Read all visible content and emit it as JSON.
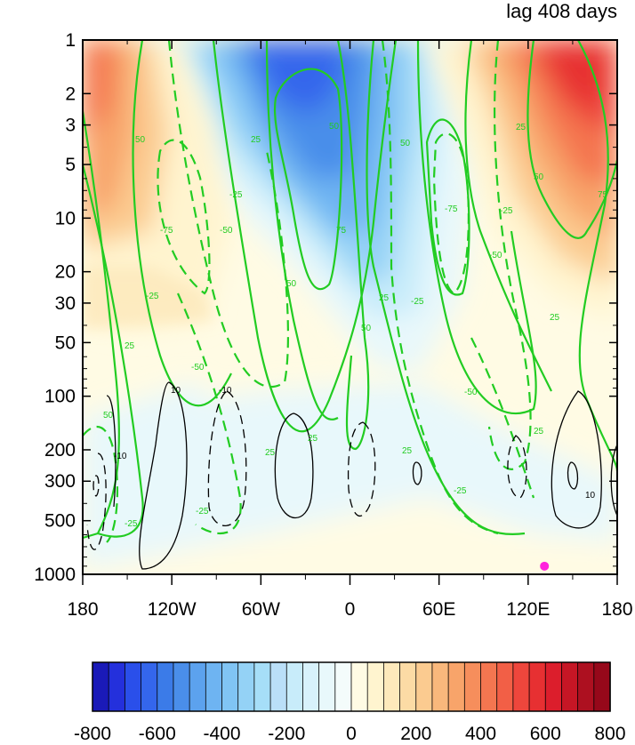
{
  "title": "lag 408 days",
  "chart_data": {
    "type": "heatmap",
    "title": "lag 408 days",
    "xlabel": "",
    "ylabel": "",
    "x_ticks": [
      {
        "value": -180,
        "label": "180"
      },
      {
        "value": -120,
        "label": "120W"
      },
      {
        "value": -60,
        "label": "60W"
      },
      {
        "value": 0,
        "label": "0"
      },
      {
        "value": 60,
        "label": "60E"
      },
      {
        "value": 120,
        "label": "120E"
      },
      {
        "value": 180,
        "label": "180"
      }
    ],
    "xlim": [
      -180,
      180
    ],
    "y_scale": "log",
    "y_reversed": true,
    "ylim": [
      1000,
      1
    ],
    "y_ticks": [
      1,
      2,
      3,
      5,
      10,
      20,
      30,
      50,
      100,
      200,
      300,
      500,
      1000
    ],
    "colorbar": {
      "levels": [
        -800,
        -750,
        -700,
        -650,
        -600,
        -550,
        -500,
        -450,
        -400,
        -350,
        -300,
        -250,
        -200,
        -150,
        -100,
        -50,
        0,
        50,
        100,
        150,
        200,
        250,
        300,
        350,
        400,
        450,
        500,
        550,
        600,
        650,
        700,
        750,
        800
      ],
      "tick_labels": [
        "-800",
        "-600",
        "-400",
        "-200",
        "0",
        "200",
        "400",
        "600",
        "800"
      ],
      "colors": [
        "#1a1ab8",
        "#2430dc",
        "#2a4fea",
        "#3466ec",
        "#3b7be8",
        "#4a8eea",
        "#5ca2ee",
        "#6eb4f2",
        "#80c4f4",
        "#94d2f6",
        "#a6def8",
        "#badff8",
        "#c8ecfa",
        "#d8f2fb",
        "#e8f8fb",
        "#f4fcfb",
        "#fffbe4",
        "#fff4cf",
        "#fde9bb",
        "#fcdba5",
        "#fbcb90",
        "#f9b87c",
        "#f8a46a",
        "#f68e5c",
        "#f47650",
        "#f25f46",
        "#ee463c",
        "#e73032",
        "#dc1e2c",
        "#c61625",
        "#ad1020",
        "#96081a"
      ]
    },
    "shaded_field": [
      {
        "lon_min": 110,
        "lon_max": 180,
        "p_top": 1,
        "p_bottom": 20,
        "value_max": 700,
        "sign": "positive"
      },
      {
        "lon_min": -180,
        "lon_max": -140,
        "p_top": 1,
        "p_bottom": 15,
        "value_max": 450,
        "sign": "positive"
      },
      {
        "lon_min": -70,
        "lon_max": 20,
        "p_top": 1,
        "p_bottom": 60,
        "value_max": -600,
        "sign": "negative"
      }
    ],
    "contours_green": {
      "color": "#22cc22",
      "levels": [
        -75,
        -50,
        -25,
        25,
        50,
        75
      ],
      "dashed_negative": true,
      "labels": [
        "25",
        "50",
        "75",
        "-25",
        "-50",
        "-75"
      ]
    },
    "contours_black": {
      "color": "#000000",
      "levels": [
        -10,
        10
      ],
      "dashed_negative": true,
      "labels": [
        "10",
        "-10"
      ]
    },
    "marker": {
      "lon": 131,
      "p": 900,
      "color": "#ff22dd"
    }
  }
}
